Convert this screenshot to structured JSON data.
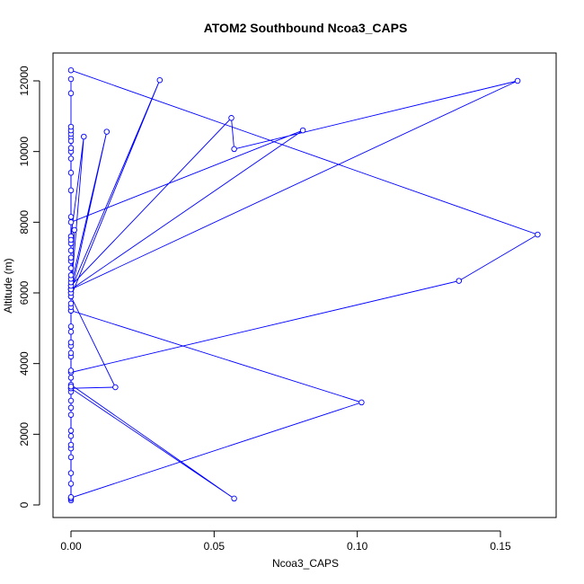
{
  "chart_data": {
    "type": "line",
    "title": "ATOM2 Southbound Ncoa3_CAPS",
    "xlabel": "Ncoa3_CAPS",
    "ylabel": "Altitude (m)",
    "xlim": [
      0,
      0.165
    ],
    "ylim": [
      0,
      12300
    ],
    "xticks": [
      0,
      0.05,
      0.1,
      0.15
    ],
    "xtick_labels": [
      "0.00",
      "0.05",
      "0.10",
      "0.15"
    ],
    "yticks": [
      0,
      2000,
      4000,
      6000,
      8000,
      10000,
      12000
    ],
    "yticks_labels": [
      "0",
      "2000",
      "4000",
      "6000",
      "8000",
      "10000",
      "12000"
    ],
    "grid": false,
    "series_color": "#0000ff",
    "series": [
      {
        "points": [
          [
            0,
            12300
          ],
          [
            0.163,
            7650
          ],
          [
            0.1355,
            6340
          ],
          [
            0,
            3750
          ],
          [
            0,
            3400
          ],
          [
            0.057,
            180
          ],
          [
            0,
            3300
          ],
          [
            0.0155,
            3330
          ],
          [
            0,
            5900
          ],
          [
            0.031,
            12020
          ],
          [
            0,
            6100
          ],
          [
            0.0012,
            7780
          ],
          [
            0,
            7600
          ],
          [
            0.0045,
            10420
          ],
          [
            0,
            6000
          ],
          [
            0.0125,
            10560
          ],
          [
            0,
            6200
          ],
          [
            0.056,
            10950
          ],
          [
            0.057,
            10070
          ],
          [
            0.156,
            12000
          ],
          [
            0,
            6100
          ],
          [
            0.081,
            10600
          ],
          [
            0,
            8000
          ],
          [
            0,
            5500
          ],
          [
            0.1015,
            2900
          ],
          [
            0,
            200
          ],
          [
            0,
            10400
          ]
        ]
      },
      {
        "points": [
          [
            0,
            130
          ],
          [
            0,
            180
          ],
          [
            0,
            220
          ],
          [
            0,
            600
          ],
          [
            0,
            900
          ],
          [
            0,
            1350
          ],
          [
            0,
            1600
          ],
          [
            0,
            1700
          ],
          [
            0,
            1950
          ],
          [
            0,
            2100
          ],
          [
            0,
            2550
          ],
          [
            0,
            2750
          ],
          [
            0,
            2950
          ],
          [
            0,
            3200
          ],
          [
            0,
            3300
          ],
          [
            0,
            3350
          ],
          [
            0,
            3600
          ],
          [
            0,
            3800
          ],
          [
            0,
            4200
          ],
          [
            0,
            4300
          ],
          [
            0,
            4500
          ],
          [
            0,
            4600
          ],
          [
            0,
            4900
          ],
          [
            0,
            5050
          ],
          [
            0,
            5500
          ],
          [
            0,
            5600
          ],
          [
            0,
            5700
          ],
          [
            0,
            5900
          ],
          [
            0,
            6000
          ],
          [
            0,
            6100
          ],
          [
            0,
            6200
          ],
          [
            0,
            6300
          ],
          [
            0,
            6400
          ],
          [
            0,
            6500
          ],
          [
            0,
            6700
          ],
          [
            0,
            6900
          ],
          [
            0,
            7000
          ],
          [
            0,
            7200
          ],
          [
            0,
            7400
          ],
          [
            0,
            7500
          ],
          [
            0,
            8150
          ],
          [
            0,
            8900
          ],
          [
            0,
            9400
          ],
          [
            0,
            9800
          ],
          [
            0,
            10000
          ],
          [
            0,
            10100
          ],
          [
            0,
            10300
          ],
          [
            0,
            10500
          ],
          [
            0,
            10600
          ],
          [
            0,
            10700
          ],
          [
            0,
            11650
          ],
          [
            0,
            12050
          ]
        ]
      }
    ]
  }
}
